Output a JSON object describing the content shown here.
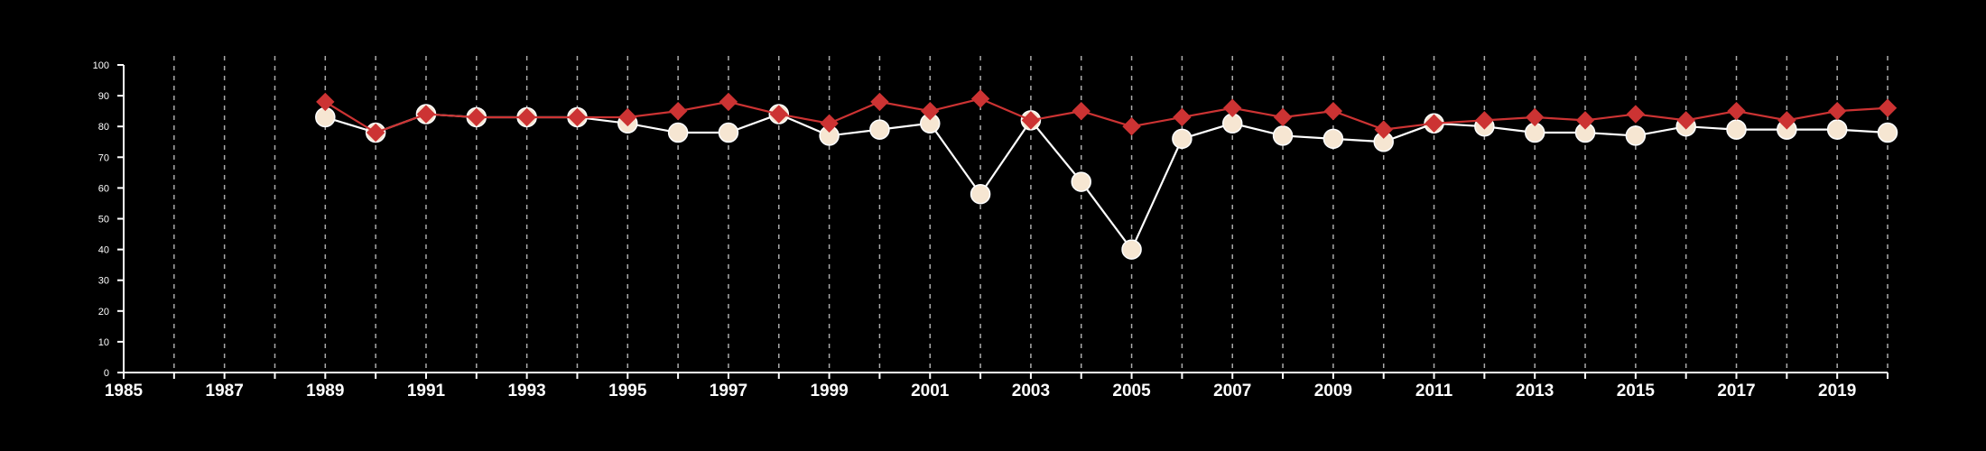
{
  "chart_data": {
    "type": "line",
    "title": "",
    "xlabel": "",
    "ylabel": "",
    "xlim": [
      1985,
      2020
    ],
    "ylim": [
      0,
      100
    ],
    "x_ticks": [
      1985,
      1987,
      1989,
      1991,
      1993,
      1995,
      1997,
      1999,
      2001,
      2003,
      2005,
      2007,
      2009,
      2011,
      2013,
      2015,
      2017,
      2019
    ],
    "x_tick_labels": [
      "1985",
      "1987",
      "1989",
      "1991",
      "1993",
      "1995",
      "1997",
      "1999",
      "2001",
      "2003",
      "2005",
      "2007",
      "2009",
      "2011",
      "2013",
      "2015",
      "2017",
      "2019"
    ],
    "y_ticks": [
      0,
      10,
      20,
      30,
      40,
      50,
      60,
      70,
      80,
      90,
      100
    ],
    "y_tick_labels": [
      "0",
      "10",
      "20",
      "30",
      "40",
      "50",
      "60",
      "70",
      "80",
      "90",
      "100"
    ],
    "grid": {
      "vertical": true,
      "horizontal": false,
      "style": "dashed",
      "color": "#aaaaaa"
    },
    "background": "#000000",
    "axis_color": "#ffffff",
    "x": [
      1989,
      1990,
      1991,
      1992,
      1993,
      1994,
      1995,
      1996,
      1997,
      1998,
      1999,
      2000,
      2001,
      2002,
      2003,
      2004,
      2005,
      2006,
      2007,
      2008,
      2009,
      2010,
      2011,
      2012,
      2013,
      2014,
      2015,
      2016,
      2017,
      2018,
      2019,
      2020
    ],
    "series": [
      {
        "marker": "diamond",
        "color": "#cc3333",
        "values": [
          88,
          78,
          84,
          83,
          83,
          83,
          83,
          85,
          88,
          84,
          81,
          88,
          85,
          89,
          82,
          85,
          80,
          83,
          86,
          83,
          85,
          79,
          81,
          82,
          83,
          82,
          84,
          82,
          85,
          82,
          85,
          86
        ]
      },
      {
        "marker": "circle",
        "color": "#ffffff",
        "fill": "#f6e6d2",
        "values": [
          83,
          78,
          84,
          83,
          83,
          83,
          81,
          78,
          78,
          84,
          77,
          79,
          81,
          58,
          82,
          62,
          40,
          76,
          81,
          77,
          76,
          75,
          81,
          80,
          78,
          78,
          77,
          80,
          79,
          79,
          79,
          78
        ]
      }
    ]
  }
}
